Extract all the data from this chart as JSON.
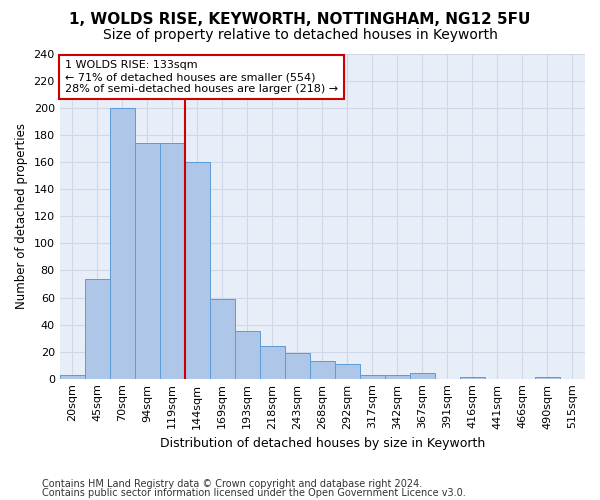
{
  "title1": "1, WOLDS RISE, KEYWORTH, NOTTINGHAM, NG12 5FU",
  "title2": "Size of property relative to detached houses in Keyworth",
  "xlabel": "Distribution of detached houses by size in Keyworth",
  "ylabel": "Number of detached properties",
  "bar_color": "#aec6e8",
  "bar_edge_color": "#5b9bd5",
  "categories": [
    "20sqm",
    "45sqm",
    "70sqm",
    "94sqm",
    "119sqm",
    "144sqm",
    "169sqm",
    "193sqm",
    "218sqm",
    "243sqm",
    "268sqm",
    "292sqm",
    "317sqm",
    "342sqm",
    "367sqm",
    "391sqm",
    "416sqm",
    "441sqm",
    "466sqm",
    "490sqm",
    "515sqm"
  ],
  "values": [
    3,
    74,
    200,
    174,
    174,
    160,
    59,
    35,
    24,
    19,
    13,
    11,
    3,
    3,
    4,
    0,
    1,
    0,
    0,
    1,
    0
  ],
  "vline_x_idx": 5,
  "vline_color": "#cc0000",
  "annotation_text": "1 WOLDS RISE: 133sqm\n← 71% of detached houses are smaller (554)\n28% of semi-detached houses are larger (218) →",
  "annotation_box_color": "#ffffff",
  "annotation_box_edge": "#cc0000",
  "ylim": [
    0,
    240
  ],
  "yticks": [
    0,
    20,
    40,
    60,
    80,
    100,
    120,
    140,
    160,
    180,
    200,
    220,
    240
  ],
  "footer_line1": "Contains HM Land Registry data © Crown copyright and database right 2024.",
  "footer_line2": "Contains public sector information licensed under the Open Government Licence v3.0.",
  "grid_color": "#d0d8e8",
  "bg_color": "#e8eef8",
  "fig_bg_color": "#ffffff",
  "title1_fontsize": 11,
  "title2_fontsize": 10,
  "xlabel_fontsize": 9,
  "ylabel_fontsize": 8.5,
  "footer_fontsize": 7,
  "tick_fontsize": 8,
  "annot_fontsize": 8
}
